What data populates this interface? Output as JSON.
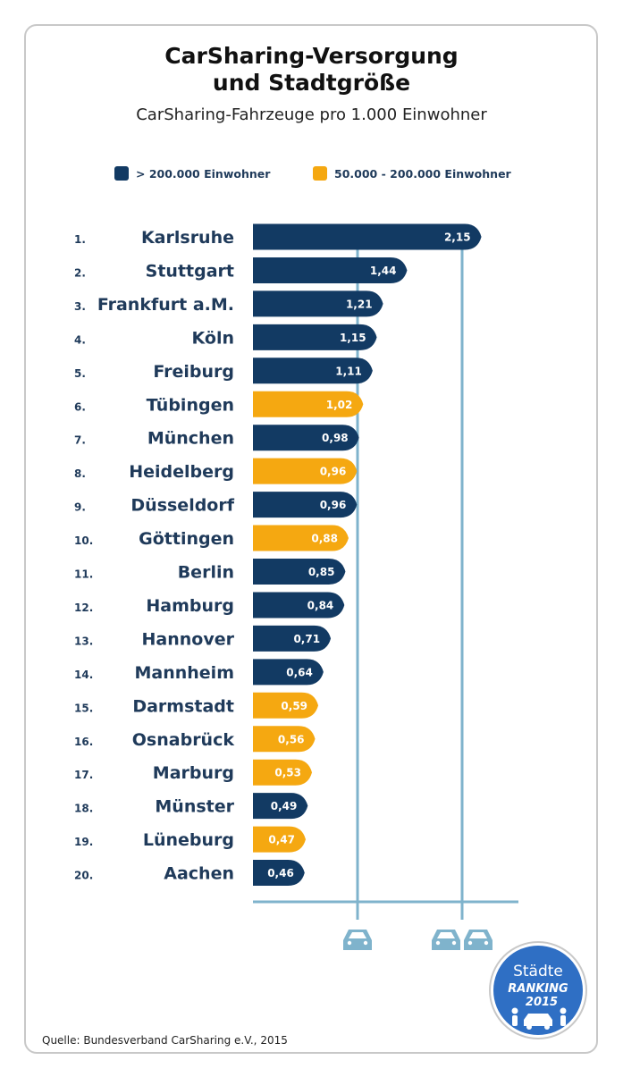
{
  "title_line1": "CarSharing-Versorgung",
  "title_line2": "und Stadtgröße",
  "subtitle": "CarSharing-Fahrzeuge pro 1.000 Einwohner",
  "legend": [
    {
      "label": "> 200.000 Einwohner",
      "color": "#123a63"
    },
    {
      "label": "50.000 - 200.000 Einwohner",
      "color": "#f5a811"
    }
  ],
  "source": "Quelle: Bundesverband CarSharing e.V., 2015",
  "badge": {
    "line1": "Städte",
    "line2": "RANKING",
    "line3": "2015"
  },
  "icons": [
    "car-icon",
    "two-cars-icon"
  ],
  "chart_data": {
    "type": "bar",
    "orientation": "horizontal",
    "categories": [
      "Karlsruhe",
      "Stuttgart",
      "Frankfurt a.M.",
      "Köln",
      "Freiburg",
      "Tübingen",
      "München",
      "Heidelberg",
      "Düsseldorf",
      "Göttingen",
      "Berlin",
      "Hamburg",
      "Hannover",
      "Mannheim",
      "Darmstadt",
      "Osnabrück",
      "Marburg",
      "Münster",
      "Lüneburg",
      "Aachen"
    ],
    "ranks": [
      "1.",
      "2.",
      "3.",
      "4.",
      "5.",
      "6.",
      "7.",
      "8.",
      "9.",
      "10.",
      "11.",
      "12.",
      "13.",
      "14.",
      "15.",
      "16.",
      "17.",
      "18.",
      "19.",
      "20."
    ],
    "values": [
      2.15,
      1.44,
      1.21,
      1.15,
      1.11,
      1.02,
      0.98,
      0.96,
      0.96,
      0.88,
      0.85,
      0.84,
      0.71,
      0.64,
      0.59,
      0.56,
      0.53,
      0.49,
      0.47,
      0.46
    ],
    "value_labels": [
      "2,15",
      "1,44",
      "1,21",
      "1,15",
      "1,11",
      "1,02",
      "0,98",
      "0,96",
      "0,96",
      "0,88",
      "0,85",
      "0,84",
      "0,71",
      "0,64",
      "0,59",
      "0,56",
      "0,53",
      "0,49",
      "0,47",
      "0,46"
    ],
    "groups": [
      "large",
      "large",
      "large",
      "large",
      "large",
      "small",
      "large",
      "small",
      "large",
      "small",
      "large",
      "large",
      "large",
      "large",
      "small",
      "small",
      "small",
      "large",
      "small",
      "large"
    ],
    "group_colors": {
      "large": "#123a63",
      "small": "#f5a811"
    },
    "reference_lines": [
      1,
      2
    ],
    "xlim": [
      0,
      2.5
    ]
  }
}
